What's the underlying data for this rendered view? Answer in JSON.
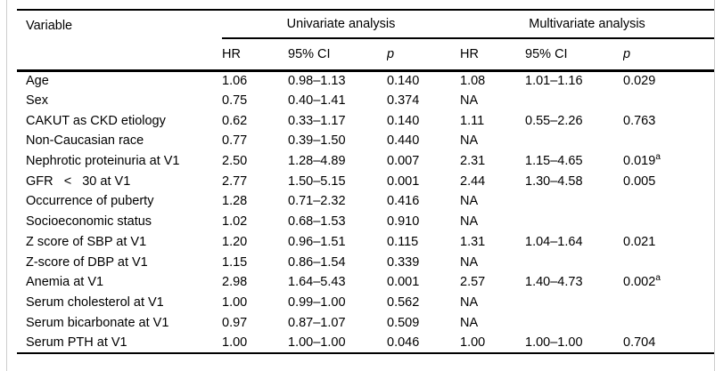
{
  "table": {
    "header": {
      "variable": "Variable",
      "univariate": "Univariate analysis",
      "multivariate": "Multivariate analysis",
      "sub_hr": "HR",
      "sub_ci": "95% CI",
      "sub_p": "p"
    },
    "rows": [
      {
        "variable": "Age",
        "u_hr": "1.06",
        "u_ci": "0.98–1.13",
        "u_p": "0.140",
        "m_hr": "1.08",
        "m_ci": "1.01–1.16",
        "m_p": "0.029",
        "m_p_sup": ""
      },
      {
        "variable": "Sex",
        "u_hr": "0.75",
        "u_ci": "0.40–1.41",
        "u_p": "0.374",
        "m_hr": "NA",
        "m_ci": "",
        "m_p": "",
        "m_p_sup": ""
      },
      {
        "variable": "CAKUT as CKD etiology",
        "u_hr": "0.62",
        "u_ci": "0.33–1.17",
        "u_p": "0.140",
        "m_hr": "1.11",
        "m_ci": "0.55–2.26",
        "m_p": "0.763",
        "m_p_sup": ""
      },
      {
        "variable": "Non-Caucasian race",
        "u_hr": "0.77",
        "u_ci": "0.39–1.50",
        "u_p": "0.440",
        "m_hr": "NA",
        "m_ci": "",
        "m_p": "",
        "m_p_sup": ""
      },
      {
        "variable": "Nephrotic proteinuria at V1",
        "u_hr": "2.50",
        "u_ci": "1.28–4.89",
        "u_p": "0.007",
        "m_hr": "2.31",
        "m_ci": "1.15–4.65",
        "m_p": "0.019",
        "m_p_sup": "a"
      },
      {
        "variable": "GFR   <   30 at V1",
        "u_hr": "2.77",
        "u_ci": "1.50–5.15",
        "u_p": "0.001",
        "m_hr": "2.44",
        "m_ci": "1.30–4.58",
        "m_p": "0.005",
        "m_p_sup": ""
      },
      {
        "variable": "Occurrence of puberty",
        "u_hr": "1.28",
        "u_ci": "0.71–2.32",
        "u_p": "0.416",
        "m_hr": "NA",
        "m_ci": "",
        "m_p": "",
        "m_p_sup": ""
      },
      {
        "variable": "Socioeconomic status",
        "u_hr": "1.02",
        "u_ci": "0.68–1.53",
        "u_p": "0.910",
        "m_hr": "NA",
        "m_ci": "",
        "m_p": "",
        "m_p_sup": ""
      },
      {
        "variable": "Z score of SBP at V1",
        "u_hr": "1.20",
        "u_ci": "0.96–1.51",
        "u_p": "0.115",
        "m_hr": "1.31",
        "m_ci": "1.04–1.64",
        "m_p": "0.021",
        "m_p_sup": ""
      },
      {
        "variable": "Z-score of DBP at V1",
        "u_hr": "1.15",
        "u_ci": "0.86–1.54",
        "u_p": "0.339",
        "m_hr": "NA",
        "m_ci": "",
        "m_p": "",
        "m_p_sup": ""
      },
      {
        "variable": "Anemia at V1",
        "u_hr": "2.98",
        "u_ci": "1.64–5.43",
        "u_p": "0.001",
        "m_hr": "2.57",
        "m_ci": "1.40–4.73",
        "m_p": "0.002",
        "m_p_sup": "a"
      },
      {
        "variable": "Serum cholesterol at V1",
        "u_hr": "1.00",
        "u_ci": "0.99–1.00",
        "u_p": "0.562",
        "m_hr": "NA",
        "m_ci": "",
        "m_p": "",
        "m_p_sup": ""
      },
      {
        "variable": "Serum bicarbonate at V1",
        "u_hr": "0.97",
        "u_ci": "0.87–1.07",
        "u_p": "0.509",
        "m_hr": "NA",
        "m_ci": "",
        "m_p": "",
        "m_p_sup": ""
      },
      {
        "variable": "Serum PTH at V1",
        "u_hr": "1.00",
        "u_ci": "1.00–1.00",
        "u_p": "0.046",
        "m_hr": "1.00",
        "m_ci": "1.00–1.00",
        "m_p": "0.704",
        "m_p_sup": ""
      }
    ]
  },
  "colors": {
    "text": "#000000",
    "rule": "#000000",
    "frame_border": "#cccccc",
    "background": "#ffffff"
  }
}
